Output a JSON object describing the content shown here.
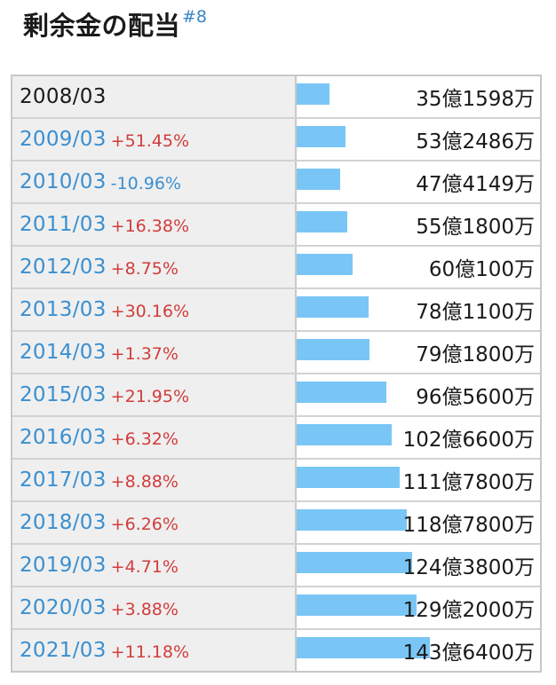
{
  "heading": {
    "title": "剰余金の配当",
    "ref": "#8"
  },
  "colors": {
    "bar": "#79c6f6",
    "increase": "#d23c3c",
    "decrease": "#3a8fd0",
    "year_link": "#3a8fd0"
  },
  "chart_data": {
    "type": "bar",
    "title": "剰余金の配当",
    "unit": "円",
    "categories": [
      "2008/03",
      "2009/03",
      "2010/03",
      "2011/03",
      "2012/03",
      "2013/03",
      "2014/03",
      "2015/03",
      "2016/03",
      "2017/03",
      "2018/03",
      "2019/03",
      "2020/03",
      "2021/03"
    ],
    "values": [
      3515980000,
      5324860000,
      4741490000,
      5518000000,
      6001000000,
      7811000000,
      7918000000,
      9656000000,
      10266000000,
      11178000000,
      11878000000,
      12438000000,
      12920000000,
      14364000000
    ],
    "series": [
      {
        "values": [
          3515980000,
          5324860000,
          4741490000,
          5518000000,
          6001000000,
          7811000000,
          7918000000,
          9656000000,
          10266000000,
          11178000000,
          11878000000,
          12438000000,
          12920000000,
          14364000000
        ]
      }
    ],
    "bar_scale_max": 26500000000,
    "rows": [
      {
        "year": "2008/03",
        "change": "",
        "amount": "35億1598万",
        "value": 3515980000
      },
      {
        "year": "2009/03",
        "change": "+51.45%",
        "amount": "53億2486万",
        "value": 5324860000
      },
      {
        "year": "2010/03",
        "change": "-10.96%",
        "amount": "47億4149万",
        "value": 4741490000
      },
      {
        "year": "2011/03",
        "change": "+16.38%",
        "amount": "55億1800万",
        "value": 5518000000
      },
      {
        "year": "2012/03",
        "change": "+8.75%",
        "amount": "60億100万",
        "value": 6001000000
      },
      {
        "year": "2013/03",
        "change": "+30.16%",
        "amount": "78億1100万",
        "value": 7811000000
      },
      {
        "year": "2014/03",
        "change": "+1.37%",
        "amount": "79億1800万",
        "value": 7918000000
      },
      {
        "year": "2015/03",
        "change": "+21.95%",
        "amount": "96億5600万",
        "value": 9656000000
      },
      {
        "year": "2016/03",
        "change": "+6.32%",
        "amount": "102億6600万",
        "value": 10266000000
      },
      {
        "year": "2017/03",
        "change": "+8.88%",
        "amount": "111億7800万",
        "value": 11178000000
      },
      {
        "year": "2018/03",
        "change": "+6.26%",
        "amount": "118億7800万",
        "value": 11878000000
      },
      {
        "year": "2019/03",
        "change": "+4.71%",
        "amount": "124億3800万",
        "value": 12438000000
      },
      {
        "year": "2020/03",
        "change": "+3.88%",
        "amount": "129億2000万",
        "value": 12920000000
      },
      {
        "year": "2021/03",
        "change": "+11.18%",
        "amount": "143億6400万",
        "value": 14364000000
      }
    ]
  }
}
